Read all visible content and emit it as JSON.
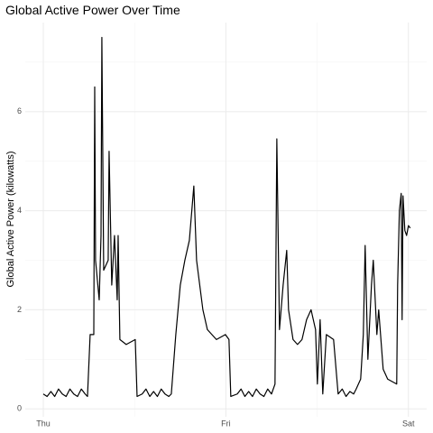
{
  "chart_data": {
    "type": "line",
    "title": "Global Active Power Over Time",
    "ylabel": "Global Active Power (kilowatts)",
    "x": [
      0,
      0.5,
      1,
      1.5,
      2,
      2.5,
      3,
      3.5,
      4,
      4.5,
      5,
      5.5,
      5.81,
      6.16,
      6.64,
      6.76,
      6.87,
      7.35,
      7.59,
      7.7,
      7.94,
      8.53,
      8.65,
      9.0,
      9.36,
      9.72,
      9.84,
      10.07,
      10.9,
      12.09,
      12.33,
      13,
      13.5,
      14,
      14.5,
      15,
      15.5,
      16,
      16.5,
      16.83,
      17.42,
      18.01,
      18.61,
      19.2,
      19.79,
      20.15,
      20.98,
      21.57,
      22.76,
      23.94,
      24.41,
      24.65,
      25.5,
      26,
      26.5,
      27,
      27.5,
      28,
      28.5,
      29,
      29.5,
      30,
      30.46,
      30.7,
      31.05,
      31.53,
      32.0,
      32.24,
      32.83,
      33.42,
      34.01,
      34.61,
      35.2,
      35.79,
      36.03,
      36.39,
      36.74,
      37.21,
      38.16,
      38.76,
      39.3,
      39.8,
      40.3,
      40.8,
      41.13,
      41.72,
      42.07,
      42.31,
      42.67,
      43.14,
      43.38,
      43.85,
      44.09,
      44.68,
      45.27,
      46.46,
      46.58,
      46.81,
      47.05,
      47.17,
      47.29,
      47.53,
      47.76,
      48.0,
      48.24
    ],
    "values": [
      0.3,
      0.25,
      0.35,
      0.25,
      0.4,
      0.3,
      0.25,
      0.4,
      0.3,
      0.25,
      0.4,
      0.3,
      0.25,
      1.5,
      1.5,
      6.5,
      3.0,
      2.2,
      3.5,
      7.5,
      2.8,
      3.0,
      5.2,
      2.5,
      3.5,
      2.2,
      3.5,
      1.4,
      1.3,
      1.4,
      0.25,
      0.3,
      0.4,
      0.25,
      0.35,
      0.25,
      0.4,
      0.3,
      0.25,
      0.3,
      1.5,
      2.5,
      3.0,
      3.4,
      4.5,
      3.0,
      2.0,
      1.6,
      1.4,
      1.5,
      1.4,
      0.25,
      0.3,
      0.4,
      0.25,
      0.35,
      0.25,
      0.4,
      0.3,
      0.25,
      0.4,
      0.3,
      0.5,
      5.45,
      1.6,
      2.5,
      3.2,
      2.0,
      1.4,
      1.3,
      1.4,
      1.8,
      2.0,
      1.6,
      0.5,
      1.8,
      0.3,
      1.5,
      1.4,
      0.3,
      0.4,
      0.25,
      0.35,
      0.3,
      0.4,
      0.6,
      1.5,
      3.3,
      1.0,
      2.5,
      3.0,
      1.5,
      2.0,
      0.8,
      0.6,
      0.5,
      2.5,
      4.0,
      4.35,
      1.8,
      4.3,
      3.6,
      3.5,
      3.7,
      3.65
    ],
    "color": "#000000",
    "xlim": [
      -2.37,
      50.4
    ],
    "xticks": [
      {
        "value": 0,
        "label": "Thu"
      },
      {
        "value": 24,
        "label": "Fri"
      },
      {
        "value": 48,
        "label": "Sat"
      }
    ],
    "ylim": [
      -0.16,
      7.8
    ],
    "yticks": [
      0,
      2,
      4,
      6
    ],
    "grid": true
  }
}
